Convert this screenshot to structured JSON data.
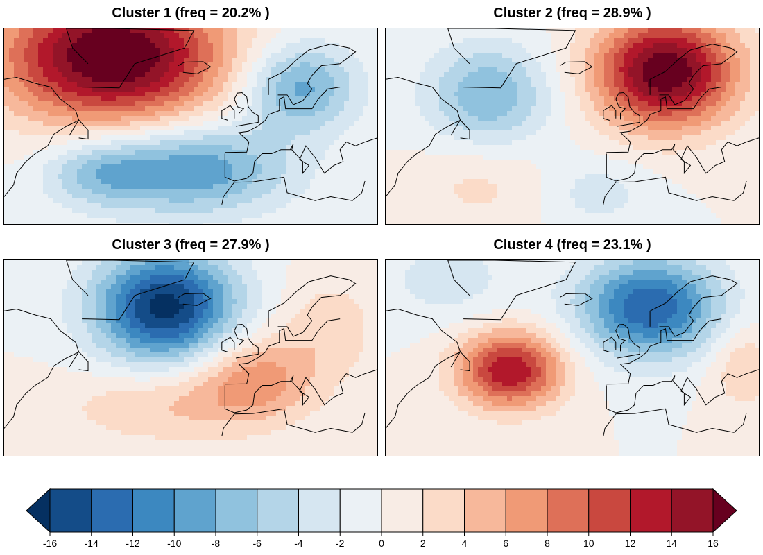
{
  "panels": [
    {
      "title": "Cluster 1 (freq = 20.2% )",
      "freq_percent": 20.2,
      "anomalies": [
        {
          "lon": -45,
          "lat": 68,
          "amp": 19,
          "sx": 25,
          "sy": 12
        },
        {
          "lon": -20,
          "lat": 39,
          "amp": -10,
          "sx": 22,
          "sy": 8
        },
        {
          "lon": 15,
          "lat": 60,
          "amp": -9,
          "sx": 13,
          "sy": 8
        },
        {
          "lon": -50,
          "lat": 38,
          "amp": -5,
          "sx": 12,
          "sy": 6
        }
      ]
    },
    {
      "title": "Cluster 2 (freq = 28.9% )",
      "freq_percent": 28.9,
      "anomalies": [
        {
          "lon": 10,
          "lat": 64,
          "amp": 18,
          "sx": 16,
          "sy": 10
        },
        {
          "lon": -47,
          "lat": 58,
          "amp": -8,
          "sx": 14,
          "sy": 9
        },
        {
          "lon": -50,
          "lat": 35,
          "amp": 2.5,
          "sx": 15,
          "sy": 8
        },
        {
          "lon": -12,
          "lat": 33,
          "amp": -3,
          "sx": 12,
          "sy": 6
        }
      ]
    },
    {
      "title": "Cluster 3 (freq = 27.9% )",
      "freq_percent": 27.9,
      "anomalies": [
        {
          "lon": -28,
          "lat": 63,
          "amp": -17,
          "sx": 16,
          "sy": 10
        },
        {
          "lon": 0,
          "lat": 45,
          "amp": 7,
          "sx": 14,
          "sy": 8
        },
        {
          "lon": -30,
          "lat": 38,
          "amp": 4,
          "sx": 22,
          "sy": 7
        },
        {
          "lon": 25,
          "lat": 58,
          "amp": 3,
          "sx": 12,
          "sy": 10
        }
      ]
    },
    {
      "title": "Cluster 4 (freq = 23.1% )",
      "freq_percent": 23.1,
      "anomalies": [
        {
          "lon": 5,
          "lat": 63,
          "amp": -14,
          "sx": 16,
          "sy": 9
        },
        {
          "lon": -40,
          "lat": 47,
          "amp": 14,
          "sx": 12,
          "sy": 7
        },
        {
          "lon": 35,
          "lat": 48,
          "amp": 4,
          "sx": 8,
          "sy": 8
        },
        {
          "lon": -60,
          "lat": 70,
          "amp": -3,
          "sx": 15,
          "sy": 8
        }
      ]
    }
  ],
  "map_extent": {
    "lon_min": -80,
    "lon_max": 40,
    "lat_min": 25,
    "lat_max": 75
  },
  "colorbar": {
    "levels": [
      -16,
      -14,
      -12,
      -10,
      -8,
      -6,
      -4,
      -2,
      0,
      2,
      4,
      6,
      8,
      10,
      12,
      14,
      16
    ],
    "tick_labels": [
      "-16",
      "-14",
      "-12",
      "-10",
      "-8",
      "-6",
      "-4",
      "-2",
      "0",
      "2",
      "4",
      "6",
      "8",
      "10",
      "12",
      "14",
      "16"
    ],
    "colors": [
      "#053061",
      "#144c88",
      "#2b6cb0",
      "#3c88c0",
      "#5fa3ce",
      "#90c2de",
      "#b4d5e8",
      "#d6e6f1",
      "#ebf1f5",
      "#f8ece5",
      "#fbdbc8",
      "#f7b89b",
      "#f09a76",
      "#de7058",
      "#c9483f",
      "#b2182b",
      "#931428",
      "#67001f"
    ]
  }
}
